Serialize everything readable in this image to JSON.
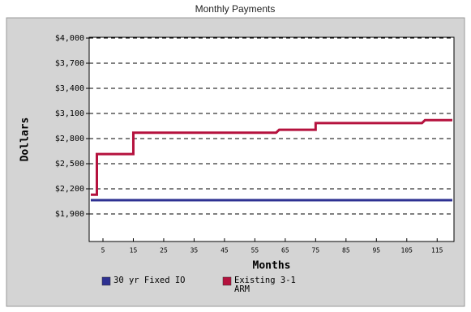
{
  "chart_data": {
    "type": "line",
    "title": "Monthly Payments",
    "x_label": "Months",
    "y_label": "Dollars",
    "x": [
      1,
      3,
      3,
      15,
      15,
      62,
      63,
      75,
      75,
      110,
      111,
      120
    ],
    "series": [
      {
        "name": "30 yr Fixed IO",
        "color": "#2e3192",
        "values": [
          2065,
          2065,
          2065,
          2065,
          2065,
          2065,
          2065,
          2065,
          2065,
          2065,
          2065,
          2065
        ]
      },
      {
        "name": "Existing 3-1 ARM",
        "color": "#b5123e",
        "values": [
          2130,
          2130,
          2615,
          2615,
          2870,
          2870,
          2905,
          2905,
          2985,
          2985,
          3020,
          3020
        ]
      }
    ],
    "xlim": [
      1,
      120
    ],
    "xticks": [
      5,
      15,
      25,
      35,
      45,
      55,
      65,
      75,
      85,
      95,
      105,
      115
    ],
    "ylim": [
      1600,
      4000
    ],
    "yticks": [
      {
        "value": 1900,
        "label": "$1,900"
      },
      {
        "value": 2200,
        "label": "$2,200"
      },
      {
        "value": 2500,
        "label": "$2,500"
      },
      {
        "value": 2800,
        "label": "$2,800"
      },
      {
        "value": 3100,
        "label": "$3,100"
      },
      {
        "value": 3400,
        "label": "$3,400"
      },
      {
        "value": 3700,
        "label": "$3,700"
      },
      {
        "value": 4000,
        "label": "$4,000"
      }
    ],
    "grid": true
  }
}
